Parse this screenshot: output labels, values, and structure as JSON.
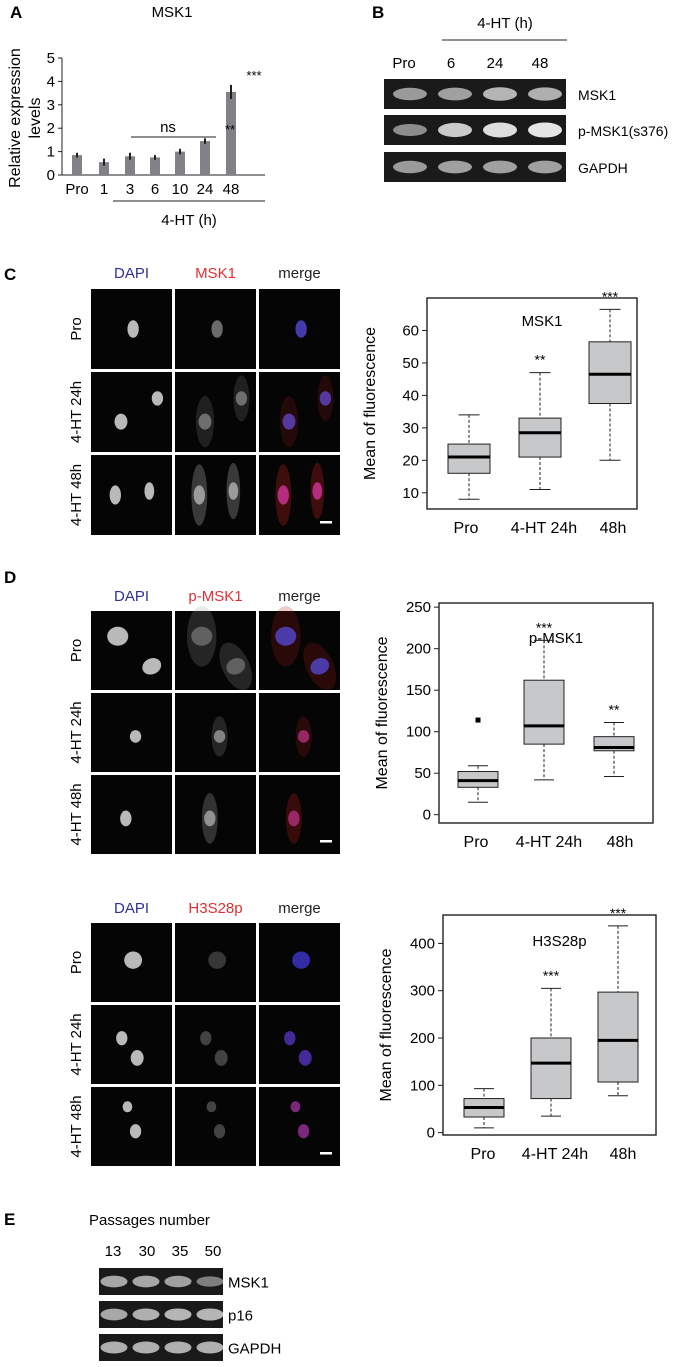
{
  "panel_letters": {
    "a": "A",
    "b": "B",
    "c": "C",
    "d": "D",
    "e": "E"
  },
  "colors": {
    "dapi": "#2e3192",
    "red": "#e03131",
    "bar": "#808285",
    "box": "#c7c8ca",
    "text": "#231f20"
  },
  "panel_b": {
    "time_label": "4-HT (h)",
    "lanes": [
      "Pro",
      "6",
      "24",
      "48"
    ],
    "bands": [
      "MSK1",
      "p-MSK1(s376)",
      "GAPDH"
    ]
  },
  "panel_c": {
    "channels": [
      "DAPI",
      "MSK1",
      "merge"
    ],
    "rows": [
      "Pro",
      "4-HT 24h",
      "4-HT 48h"
    ]
  },
  "panel_d1": {
    "channels": [
      "DAPI",
      "p-MSK1",
      "merge"
    ],
    "rows": [
      "Pro",
      "4-HT 24h",
      "4-HT 48h"
    ]
  },
  "panel_d2": {
    "channels": [
      "DAPI",
      "H3S28p",
      "merge"
    ],
    "rows": [
      "Pro",
      "4-HT 24h",
      "4-HT 48h"
    ]
  },
  "panel_e": {
    "title": "Passages number",
    "lanes": [
      "13",
      "30",
      "35",
      "50"
    ],
    "bands": [
      "MSK1",
      "p16",
      "GAPDH"
    ]
  },
  "chart_data": [
    {
      "type": "bar",
      "title": "MSK1",
      "ylabel": "Relative expression levels",
      "xlabel": "4-HT (h)",
      "categories": [
        "Pro",
        "1",
        "3",
        "6",
        "10",
        "24",
        "48"
      ],
      "values": [
        0.85,
        0.55,
        0.8,
        0.75,
        1.0,
        1.45,
        3.55
      ],
      "errors": [
        0.1,
        0.15,
        0.15,
        0.1,
        0.12,
        0.12,
        0.3
      ],
      "ylim": [
        0,
        5
      ],
      "yticks": [
        "0",
        "1",
        "2",
        "3",
        "4",
        "5"
      ],
      "annotations": {
        "ns": "ns",
        "sig24": "**",
        "sig48": "***"
      }
    },
    {
      "type": "box",
      "title": "MSK1",
      "ylabel": "Mean of fluorescence",
      "categories": [
        "Pro",
        "4-HT 24h",
        "48h"
      ],
      "boxes": [
        {
          "min": 8,
          "q1": 16,
          "median": 21,
          "q3": 25,
          "max": 34
        },
        {
          "min": 11,
          "q1": 21,
          "median": 28.5,
          "q3": 33,
          "max": 47
        },
        {
          "min": 20,
          "q1": 37.5,
          "median": 46.5,
          "q3": 56.5,
          "max": 66.5
        }
      ],
      "outliers": [
        [],
        [],
        []
      ],
      "significance": [
        "",
        "**",
        "***"
      ],
      "ylim": [
        5,
        70
      ],
      "yticks": [
        "10",
        "20",
        "30",
        "40",
        "50",
        "60"
      ]
    },
    {
      "type": "box",
      "title": "p-MSK1",
      "ylabel": "Mean of fluorescence",
      "categories": [
        "Pro",
        "4-HT 24h",
        "48h"
      ],
      "boxes": [
        {
          "min": 15,
          "q1": 33,
          "median": 41,
          "q3": 52,
          "max": 59
        },
        {
          "min": 42,
          "q1": 85,
          "median": 107,
          "q3": 162,
          "max": 210
        },
        {
          "min": 46,
          "q1": 77,
          "median": 81,
          "q3": 94,
          "max": 111
        }
      ],
      "outliers": [
        [
          114
        ],
        [],
        []
      ],
      "significance": [
        "",
        "***",
        "**"
      ],
      "ylim": [
        -10,
        255
      ],
      "yticks": [
        "0",
        "50",
        "100",
        "150",
        "200",
        "250"
      ]
    },
    {
      "type": "box",
      "title": "H3S28p",
      "ylabel": "Mean of fluorescence",
      "categories": [
        "Pro",
        "4-HT 24h",
        "48h"
      ],
      "boxes": [
        {
          "min": 10,
          "q1": 33,
          "median": 53,
          "q3": 72,
          "max": 93
        },
        {
          "min": 35,
          "q1": 72,
          "median": 147,
          "q3": 200,
          "max": 305
        },
        {
          "min": 78,
          "q1": 107,
          "median": 195,
          "q3": 297,
          "max": 437
        }
      ],
      "outliers": [
        [],
        [],
        []
      ],
      "significance": [
        "",
        "***",
        "***"
      ],
      "ylim": [
        -5,
        460
      ],
      "yticks": [
        "0",
        "100",
        "200",
        "300",
        "400"
      ]
    }
  ]
}
